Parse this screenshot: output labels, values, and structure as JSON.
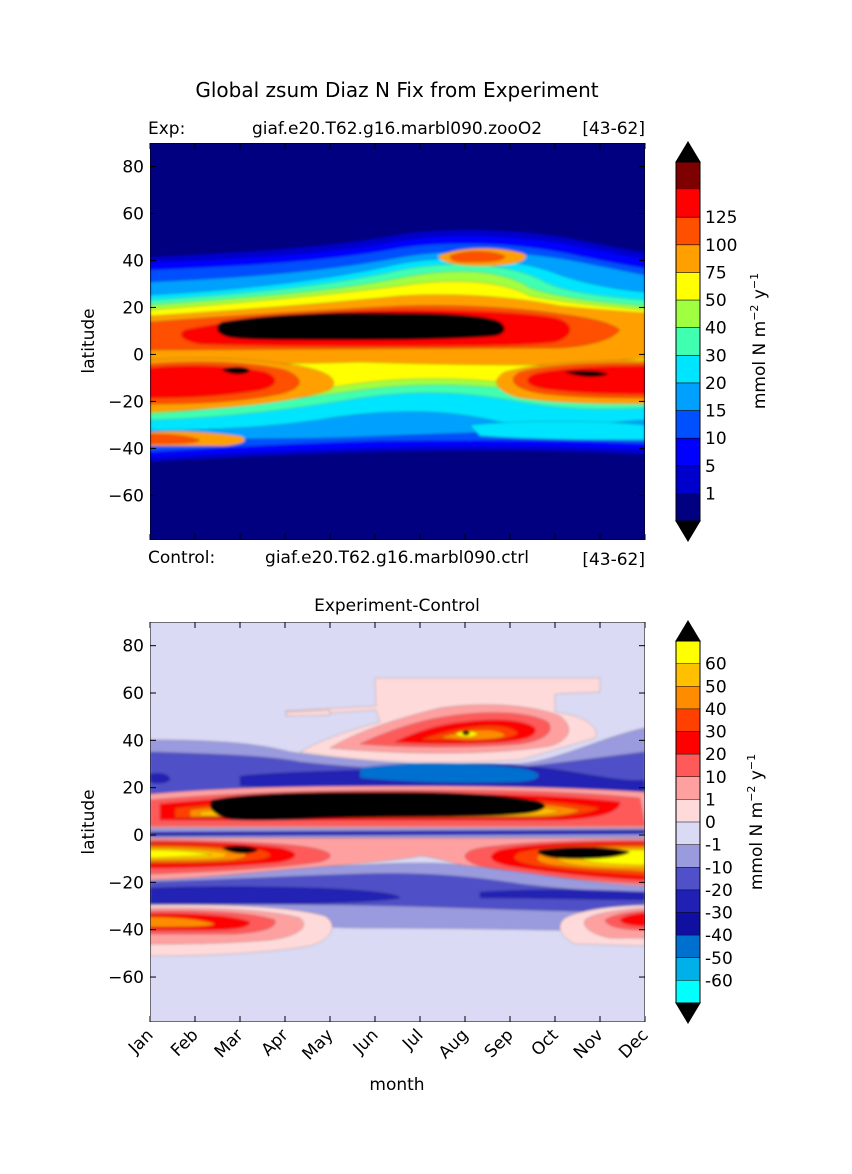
{
  "figure": {
    "title": "Global zsum Diaz N Fix from Experiment",
    "exp_label": "Exp:",
    "exp_case": "giaf.e20.T62.g16.marbl090.zooO2",
    "exp_years": "[43-62]",
    "ctrl_label": "Control:",
    "ctrl_case": "giaf.e20.T62.g16.marbl090.ctrl",
    "ctrl_years": "[43-62]",
    "diff_title": "Experiment-Control",
    "ylabel": "latitude",
    "xlabel": "month",
    "cbar_label_base": "mmol N m",
    "cbar_label_exp1": "−2",
    "cbar_label_mid": " y",
    "cbar_label_exp2": "−1"
  },
  "chart_data": [
    {
      "type": "heatmap",
      "title": "Global zsum Diaz N Fix from Experiment",
      "xlabel": "",
      "ylabel": "latitude",
      "x_ticklabels": [],
      "y_ticks": [
        80,
        60,
        40,
        20,
        0,
        -20,
        -40,
        -60
      ],
      "ylim": [
        -79,
        90
      ],
      "colorbar": {
        "label": "mmol N m^-2 y^-1",
        "levels": [
          "1",
          "5",
          "10",
          "15",
          "20",
          "30",
          "40",
          "50",
          "75",
          "100",
          "125"
        ],
        "colors": [
          "#000080",
          "#0000cd",
          "#0000ff",
          "#0050ff",
          "#00a0ff",
          "#00e5ff",
          "#40ffb0",
          "#a0ff40",
          "#ffff00",
          "#ffa000",
          "#ff5000",
          "#ff0000",
          "#7f0000"
        ],
        "extend": "both",
        "over_color": "#000000",
        "under_color": "#000000"
      },
      "regions": [
        {
          "level": "background",
          "color": "#000080"
        },
        {
          "level": ">1",
          "color": "#0000cd"
        },
        {
          "level": ">5",
          "color": "#0000ff"
        },
        {
          "level": ">10",
          "color": "#0050ff"
        },
        {
          "level": ">15",
          "color": "#00a0ff"
        },
        {
          "level": ">20",
          "color": "#00e5ff"
        },
        {
          "level": ">30",
          "color": "#40ffb0"
        },
        {
          "level": ">40",
          "color": "#a0ff40"
        },
        {
          "level": ">50",
          "color": "#ffff00"
        },
        {
          "level": ">75",
          "color": "#ffa000"
        },
        {
          "level": ">100",
          "color": "#ff5000"
        },
        {
          "level": ">125",
          "color": "#ff0000"
        },
        {
          "level": "over",
          "color": "#000000"
        }
      ]
    },
    {
      "type": "heatmap",
      "title": "Experiment-Control",
      "xlabel": "month",
      "ylabel": "latitude",
      "x_ticklabels": [
        "Jan",
        "Feb",
        "Mar",
        "Apr",
        "May",
        "Jun",
        "Jul",
        "Aug",
        "Sep",
        "Oct",
        "Nov",
        "Dec"
      ],
      "y_ticks": [
        80,
        60,
        40,
        20,
        0,
        -20,
        -40,
        -60
      ],
      "ylim": [
        -79,
        90
      ],
      "colorbar": {
        "label": "mmol N m^-2 y^-1",
        "levels": [
          "60",
          "50",
          "40",
          "30",
          "20",
          "10",
          "1",
          "0",
          "-1",
          "-10",
          "-20",
          "-30",
          "-40",
          "-50",
          "-60"
        ],
        "colors": [
          "#ffff00",
          "#ffc000",
          "#ff8c00",
          "#ff4000",
          "#ff0000",
          "#ff5a5a",
          "#ffa0a0",
          "#ffdada",
          "#dadaf5",
          "#9a9ade",
          "#5050c8",
          "#2020b4",
          "#1010a0",
          "#0070d0",
          "#00b0e8",
          "#00ffff"
        ],
        "extend": "both",
        "over_color": "#000000",
        "under_color": "#000000"
      },
      "regions": [
        {
          "level": "background (-1..0)",
          "color": "#dadaf5"
        }
      ]
    }
  ]
}
